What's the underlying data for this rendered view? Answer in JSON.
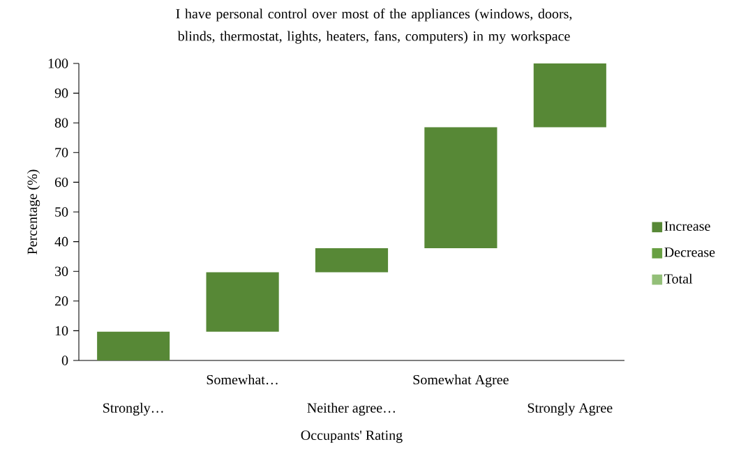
{
  "chart_data": {
    "type": "bar",
    "title": "I have personal control over most of the appliances (windows, doors, blinds, thermostat, lights, heaters, fans, computers) in my workspace",
    "xlabel": "Occupants' Rating",
    "ylabel": "Percentage (%)",
    "categories": [
      "Strongly…",
      "Somewhat…",
      "Neither agree…",
      "Somewhat Agree",
      "Strongly Agree"
    ],
    "series": [
      {
        "name": "Increase",
        "color": "#578836",
        "base": [
          0,
          9.7,
          29.7,
          37.8,
          78.5
        ],
        "values": [
          9.7,
          20,
          8.1,
          40.7,
          21.5
        ]
      },
      {
        "name": "Decrease",
        "color": "#68a042",
        "values": [
          null,
          null,
          null,
          null,
          null
        ]
      },
      {
        "name": "Total",
        "color": "#93bf78",
        "values": [
          null,
          null,
          null,
          null,
          null
        ]
      }
    ],
    "ylim": [
      0,
      100
    ],
    "yticks": [
      0,
      10,
      20,
      30,
      40,
      50,
      60,
      70,
      80,
      90,
      100
    ],
    "legend": "right"
  }
}
